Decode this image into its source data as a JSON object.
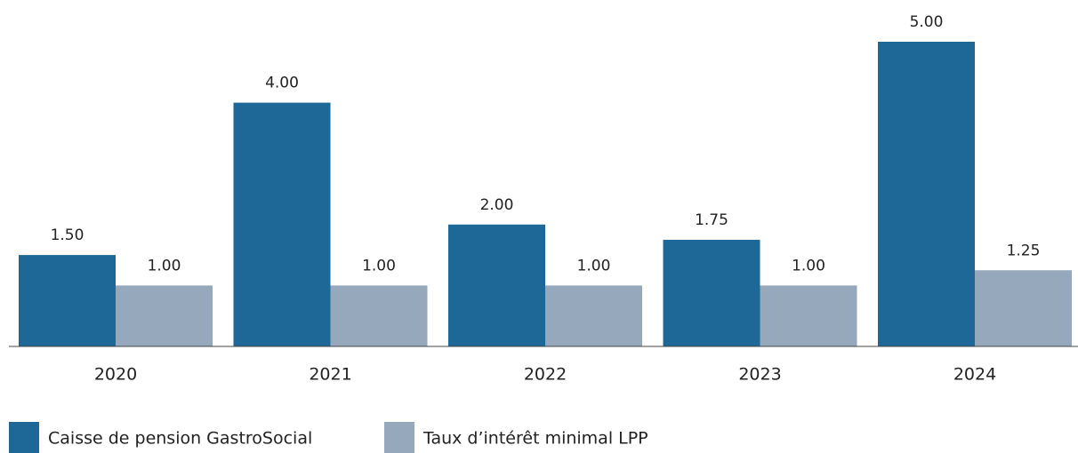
{
  "chart_data": {
    "type": "bar",
    "categories": [
      "2020",
      "2021",
      "2022",
      "2023",
      "2024"
    ],
    "series": [
      {
        "name": "Caisse de pension GastroSocial",
        "color": "#1d6896",
        "values": [
          1.5,
          4,
          2,
          1.75,
          5
        ],
        "value_labels": [
          "1.50",
          "4.00",
          "2.00",
          "1.75",
          "5.00"
        ]
      },
      {
        "name": "Taux d’intérêt minimal LPP",
        "color": "#96a9bc",
        "values": [
          1,
          1,
          1,
          1,
          1.25
        ],
        "value_labels": [
          "1.00",
          "1.00",
          "1.00",
          "1.00",
          "1.25"
        ]
      }
    ]
  }
}
